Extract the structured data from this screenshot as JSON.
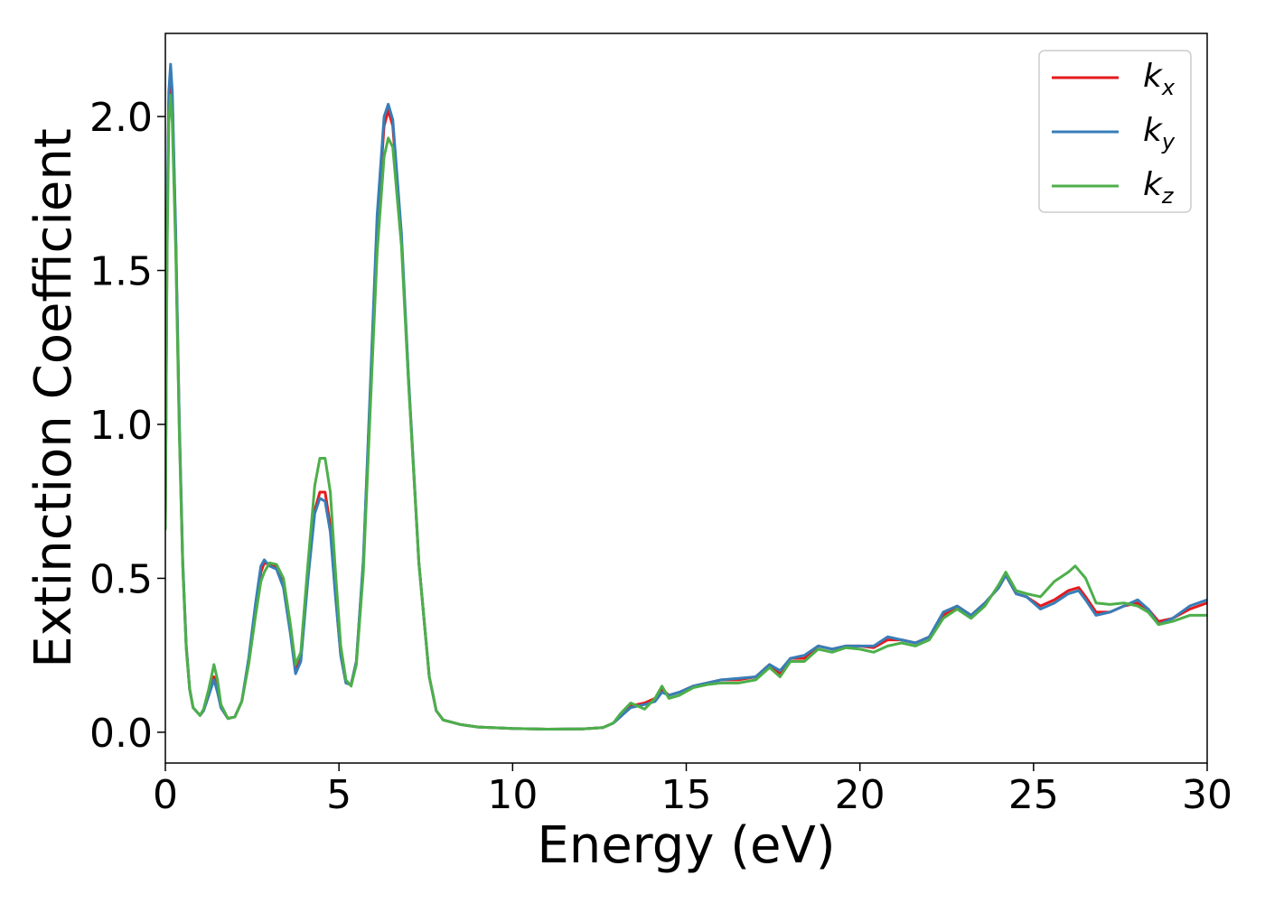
{
  "chart_data": {
    "type": "line",
    "title": "",
    "xlabel": "Energy (eV)",
    "ylabel": "Extinction Coefficient",
    "xlim": [
      0,
      30
    ],
    "ylim": [
      -0.1,
      2.27
    ],
    "xticks": [
      0,
      5,
      10,
      15,
      20,
      25,
      30
    ],
    "xtick_labels": [
      "0",
      "5",
      "10",
      "15",
      "20",
      "25",
      "30"
    ],
    "yticks": [
      0.0,
      0.5,
      1.0,
      1.5,
      2.0
    ],
    "ytick_labels": [
      "0.0",
      "0.5",
      "1.0",
      "1.5",
      "2.0"
    ],
    "grid": false,
    "legend_position": "top-right",
    "series": [
      {
        "name": "k",
        "subscript": "x",
        "color": "#e41a1c",
        "points": [
          [
            0,
            0.68
          ],
          [
            0.05,
            1.6
          ],
          [
            0.1,
            2.05
          ],
          [
            0.15,
            2.14
          ],
          [
            0.2,
            2.05
          ],
          [
            0.3,
            1.6
          ],
          [
            0.4,
            1.0
          ],
          [
            0.5,
            0.55
          ],
          [
            0.6,
            0.28
          ],
          [
            0.7,
            0.14
          ],
          [
            0.8,
            0.08
          ],
          [
            1.0,
            0.055
          ],
          [
            1.1,
            0.07
          ],
          [
            1.25,
            0.12
          ],
          [
            1.4,
            0.18
          ],
          [
            1.5,
            0.14
          ],
          [
            1.6,
            0.08
          ],
          [
            1.8,
            0.045
          ],
          [
            2.0,
            0.05
          ],
          [
            2.2,
            0.1
          ],
          [
            2.4,
            0.23
          ],
          [
            2.6,
            0.4
          ],
          [
            2.75,
            0.52
          ],
          [
            2.85,
            0.55
          ],
          [
            3.0,
            0.545
          ],
          [
            3.2,
            0.54
          ],
          [
            3.4,
            0.48
          ],
          [
            3.6,
            0.33
          ],
          [
            3.75,
            0.2
          ],
          [
            3.9,
            0.24
          ],
          [
            4.1,
            0.5
          ],
          [
            4.3,
            0.72
          ],
          [
            4.45,
            0.78
          ],
          [
            4.6,
            0.78
          ],
          [
            4.75,
            0.67
          ],
          [
            4.9,
            0.45
          ],
          [
            5.05,
            0.25
          ],
          [
            5.2,
            0.16
          ],
          [
            5.35,
            0.155
          ],
          [
            5.5,
            0.23
          ],
          [
            5.7,
            0.55
          ],
          [
            5.9,
            1.1
          ],
          [
            6.1,
            1.65
          ],
          [
            6.3,
            1.97
          ],
          [
            6.42,
            2.02
          ],
          [
            6.55,
            1.97
          ],
          [
            6.8,
            1.6
          ],
          [
            7.0,
            1.15
          ],
          [
            7.3,
            0.55
          ],
          [
            7.6,
            0.18
          ],
          [
            7.8,
            0.07
          ],
          [
            8.0,
            0.04
          ],
          [
            8.5,
            0.025
          ],
          [
            9,
            0.017
          ],
          [
            10,
            0.012
          ],
          [
            11,
            0.01
          ],
          [
            12,
            0.011
          ],
          [
            12.6,
            0.015
          ],
          [
            12.9,
            0.03
          ],
          [
            13.1,
            0.05
          ],
          [
            13.4,
            0.085
          ],
          [
            13.8,
            0.095
          ],
          [
            14.1,
            0.11
          ],
          [
            14.3,
            0.14
          ],
          [
            14.5,
            0.12
          ],
          [
            14.8,
            0.13
          ],
          [
            15.2,
            0.15
          ],
          [
            15.6,
            0.16
          ],
          [
            16.0,
            0.17
          ],
          [
            16.5,
            0.17
          ],
          [
            17.0,
            0.18
          ],
          [
            17.4,
            0.22
          ],
          [
            17.7,
            0.19
          ],
          [
            18.0,
            0.24
          ],
          [
            18.4,
            0.24
          ],
          [
            18.8,
            0.28
          ],
          [
            19.2,
            0.27
          ],
          [
            19.6,
            0.28
          ],
          [
            20.0,
            0.28
          ],
          [
            20.4,
            0.275
          ],
          [
            20.8,
            0.3
          ],
          [
            21.2,
            0.3
          ],
          [
            21.6,
            0.29
          ],
          [
            22.0,
            0.31
          ],
          [
            22.4,
            0.38
          ],
          [
            22.8,
            0.41
          ],
          [
            23.2,
            0.38
          ],
          [
            23.6,
            0.42
          ],
          [
            24.0,
            0.47
          ],
          [
            24.2,
            0.51
          ],
          [
            24.5,
            0.45
          ],
          [
            24.8,
            0.44
          ],
          [
            25.2,
            0.41
          ],
          [
            25.6,
            0.43
          ],
          [
            26.0,
            0.46
          ],
          [
            26.3,
            0.47
          ],
          [
            26.5,
            0.44
          ],
          [
            26.8,
            0.39
          ],
          [
            27.2,
            0.39
          ],
          [
            27.6,
            0.41
          ],
          [
            28.0,
            0.42
          ],
          [
            28.3,
            0.4
          ],
          [
            28.6,
            0.36
          ],
          [
            29.0,
            0.37
          ],
          [
            29.5,
            0.4
          ],
          [
            30.0,
            0.42
          ]
        ]
      },
      {
        "name": "k",
        "subscript": "y",
        "color": "#377eb8",
        "points": [
          [
            0,
            0.7
          ],
          [
            0.05,
            1.65
          ],
          [
            0.1,
            2.08
          ],
          [
            0.15,
            2.17
          ],
          [
            0.2,
            2.08
          ],
          [
            0.3,
            1.62
          ],
          [
            0.4,
            1.02
          ],
          [
            0.5,
            0.56
          ],
          [
            0.6,
            0.28
          ],
          [
            0.7,
            0.14
          ],
          [
            0.8,
            0.08
          ],
          [
            1.0,
            0.055
          ],
          [
            1.1,
            0.07
          ],
          [
            1.25,
            0.12
          ],
          [
            1.4,
            0.17
          ],
          [
            1.5,
            0.13
          ],
          [
            1.6,
            0.08
          ],
          [
            1.8,
            0.045
          ],
          [
            2.0,
            0.05
          ],
          [
            2.2,
            0.1
          ],
          [
            2.4,
            0.24
          ],
          [
            2.6,
            0.42
          ],
          [
            2.75,
            0.54
          ],
          [
            2.85,
            0.56
          ],
          [
            3.0,
            0.54
          ],
          [
            3.2,
            0.53
          ],
          [
            3.4,
            0.47
          ],
          [
            3.6,
            0.32
          ],
          [
            3.75,
            0.19
          ],
          [
            3.9,
            0.23
          ],
          [
            4.1,
            0.49
          ],
          [
            4.3,
            0.71
          ],
          [
            4.45,
            0.76
          ],
          [
            4.6,
            0.75
          ],
          [
            4.75,
            0.65
          ],
          [
            4.9,
            0.44
          ],
          [
            5.05,
            0.25
          ],
          [
            5.2,
            0.16
          ],
          [
            5.35,
            0.155
          ],
          [
            5.5,
            0.23
          ],
          [
            5.7,
            0.56
          ],
          [
            5.9,
            1.12
          ],
          [
            6.1,
            1.68
          ],
          [
            6.3,
            2.0
          ],
          [
            6.42,
            2.04
          ],
          [
            6.55,
            1.99
          ],
          [
            6.8,
            1.62
          ],
          [
            7.0,
            1.16
          ],
          [
            7.3,
            0.55
          ],
          [
            7.6,
            0.18
          ],
          [
            7.8,
            0.07
          ],
          [
            8.0,
            0.04
          ],
          [
            8.5,
            0.025
          ],
          [
            9,
            0.017
          ],
          [
            10,
            0.012
          ],
          [
            11,
            0.01
          ],
          [
            12,
            0.011
          ],
          [
            12.6,
            0.015
          ],
          [
            12.9,
            0.03
          ],
          [
            13.1,
            0.05
          ],
          [
            13.4,
            0.08
          ],
          [
            13.8,
            0.09
          ],
          [
            14.1,
            0.1
          ],
          [
            14.3,
            0.13
          ],
          [
            14.5,
            0.12
          ],
          [
            14.8,
            0.13
          ],
          [
            15.2,
            0.15
          ],
          [
            15.6,
            0.16
          ],
          [
            16.0,
            0.17
          ],
          [
            16.5,
            0.175
          ],
          [
            17.0,
            0.18
          ],
          [
            17.4,
            0.22
          ],
          [
            17.7,
            0.2
          ],
          [
            18.0,
            0.24
          ],
          [
            18.4,
            0.25
          ],
          [
            18.8,
            0.28
          ],
          [
            19.2,
            0.27
          ],
          [
            19.6,
            0.28
          ],
          [
            20.0,
            0.28
          ],
          [
            20.4,
            0.28
          ],
          [
            20.8,
            0.31
          ],
          [
            21.2,
            0.3
          ],
          [
            21.6,
            0.29
          ],
          [
            22.0,
            0.31
          ],
          [
            22.4,
            0.39
          ],
          [
            22.8,
            0.41
          ],
          [
            23.2,
            0.38
          ],
          [
            23.6,
            0.42
          ],
          [
            24.0,
            0.47
          ],
          [
            24.2,
            0.51
          ],
          [
            24.5,
            0.45
          ],
          [
            24.8,
            0.44
          ],
          [
            25.2,
            0.4
          ],
          [
            25.6,
            0.42
          ],
          [
            26.0,
            0.45
          ],
          [
            26.3,
            0.46
          ],
          [
            26.5,
            0.43
          ],
          [
            26.8,
            0.38
          ],
          [
            27.2,
            0.39
          ],
          [
            27.6,
            0.41
          ],
          [
            28.0,
            0.43
          ],
          [
            28.3,
            0.4
          ],
          [
            28.6,
            0.35
          ],
          [
            29.0,
            0.37
          ],
          [
            29.5,
            0.41
          ],
          [
            30.0,
            0.43
          ]
        ]
      },
      {
        "name": "k",
        "subscript": "z",
        "color": "#4daf4a",
        "points": [
          [
            0,
            0.66
          ],
          [
            0.05,
            1.55
          ],
          [
            0.1,
            1.98
          ],
          [
            0.15,
            2.07
          ],
          [
            0.2,
            1.98
          ],
          [
            0.3,
            1.56
          ],
          [
            0.4,
            0.98
          ],
          [
            0.5,
            0.54
          ],
          [
            0.6,
            0.27
          ],
          [
            0.7,
            0.14
          ],
          [
            0.8,
            0.08
          ],
          [
            1.0,
            0.055
          ],
          [
            1.1,
            0.075
          ],
          [
            1.25,
            0.14
          ],
          [
            1.4,
            0.22
          ],
          [
            1.5,
            0.17
          ],
          [
            1.6,
            0.09
          ],
          [
            1.8,
            0.045
          ],
          [
            2.0,
            0.05
          ],
          [
            2.2,
            0.1
          ],
          [
            2.4,
            0.22
          ],
          [
            2.6,
            0.38
          ],
          [
            2.75,
            0.49
          ],
          [
            2.85,
            0.52
          ],
          [
            3.0,
            0.55
          ],
          [
            3.2,
            0.545
          ],
          [
            3.4,
            0.5
          ],
          [
            3.6,
            0.35
          ],
          [
            3.75,
            0.22
          ],
          [
            3.9,
            0.26
          ],
          [
            4.1,
            0.54
          ],
          [
            4.3,
            0.8
          ],
          [
            4.45,
            0.89
          ],
          [
            4.6,
            0.89
          ],
          [
            4.75,
            0.78
          ],
          [
            4.9,
            0.52
          ],
          [
            5.05,
            0.28
          ],
          [
            5.2,
            0.17
          ],
          [
            5.35,
            0.15
          ],
          [
            5.5,
            0.22
          ],
          [
            5.7,
            0.52
          ],
          [
            5.9,
            1.05
          ],
          [
            6.1,
            1.56
          ],
          [
            6.3,
            1.87
          ],
          [
            6.42,
            1.93
          ],
          [
            6.55,
            1.9
          ],
          [
            6.8,
            1.58
          ],
          [
            7.0,
            1.14
          ],
          [
            7.3,
            0.55
          ],
          [
            7.6,
            0.18
          ],
          [
            7.8,
            0.07
          ],
          [
            8.0,
            0.04
          ],
          [
            8.5,
            0.025
          ],
          [
            9,
            0.017
          ],
          [
            10,
            0.012
          ],
          [
            11,
            0.01
          ],
          [
            12,
            0.011
          ],
          [
            12.6,
            0.015
          ],
          [
            12.9,
            0.03
          ],
          [
            13.1,
            0.06
          ],
          [
            13.4,
            0.095
          ],
          [
            13.8,
            0.075
          ],
          [
            14.1,
            0.11
          ],
          [
            14.3,
            0.15
          ],
          [
            14.5,
            0.11
          ],
          [
            14.8,
            0.12
          ],
          [
            15.2,
            0.145
          ],
          [
            15.6,
            0.155
          ],
          [
            16.0,
            0.16
          ],
          [
            16.5,
            0.16
          ],
          [
            17.0,
            0.17
          ],
          [
            17.4,
            0.21
          ],
          [
            17.7,
            0.18
          ],
          [
            18.0,
            0.23
          ],
          [
            18.4,
            0.23
          ],
          [
            18.8,
            0.27
          ],
          [
            19.2,
            0.26
          ],
          [
            19.6,
            0.275
          ],
          [
            20.0,
            0.27
          ],
          [
            20.4,
            0.26
          ],
          [
            20.8,
            0.28
          ],
          [
            21.2,
            0.29
          ],
          [
            21.6,
            0.28
          ],
          [
            22.0,
            0.3
          ],
          [
            22.4,
            0.37
          ],
          [
            22.8,
            0.4
          ],
          [
            23.2,
            0.37
          ],
          [
            23.6,
            0.41
          ],
          [
            24.0,
            0.48
          ],
          [
            24.2,
            0.52
          ],
          [
            24.5,
            0.46
          ],
          [
            24.8,
            0.45
          ],
          [
            25.2,
            0.44
          ],
          [
            25.6,
            0.49
          ],
          [
            26.0,
            0.52
          ],
          [
            26.2,
            0.54
          ],
          [
            26.5,
            0.5
          ],
          [
            26.8,
            0.42
          ],
          [
            27.2,
            0.415
          ],
          [
            27.6,
            0.42
          ],
          [
            28.0,
            0.41
          ],
          [
            28.3,
            0.39
          ],
          [
            28.6,
            0.35
          ],
          [
            29.0,
            0.36
          ],
          [
            29.5,
            0.38
          ],
          [
            30.0,
            0.38
          ]
        ]
      }
    ]
  }
}
